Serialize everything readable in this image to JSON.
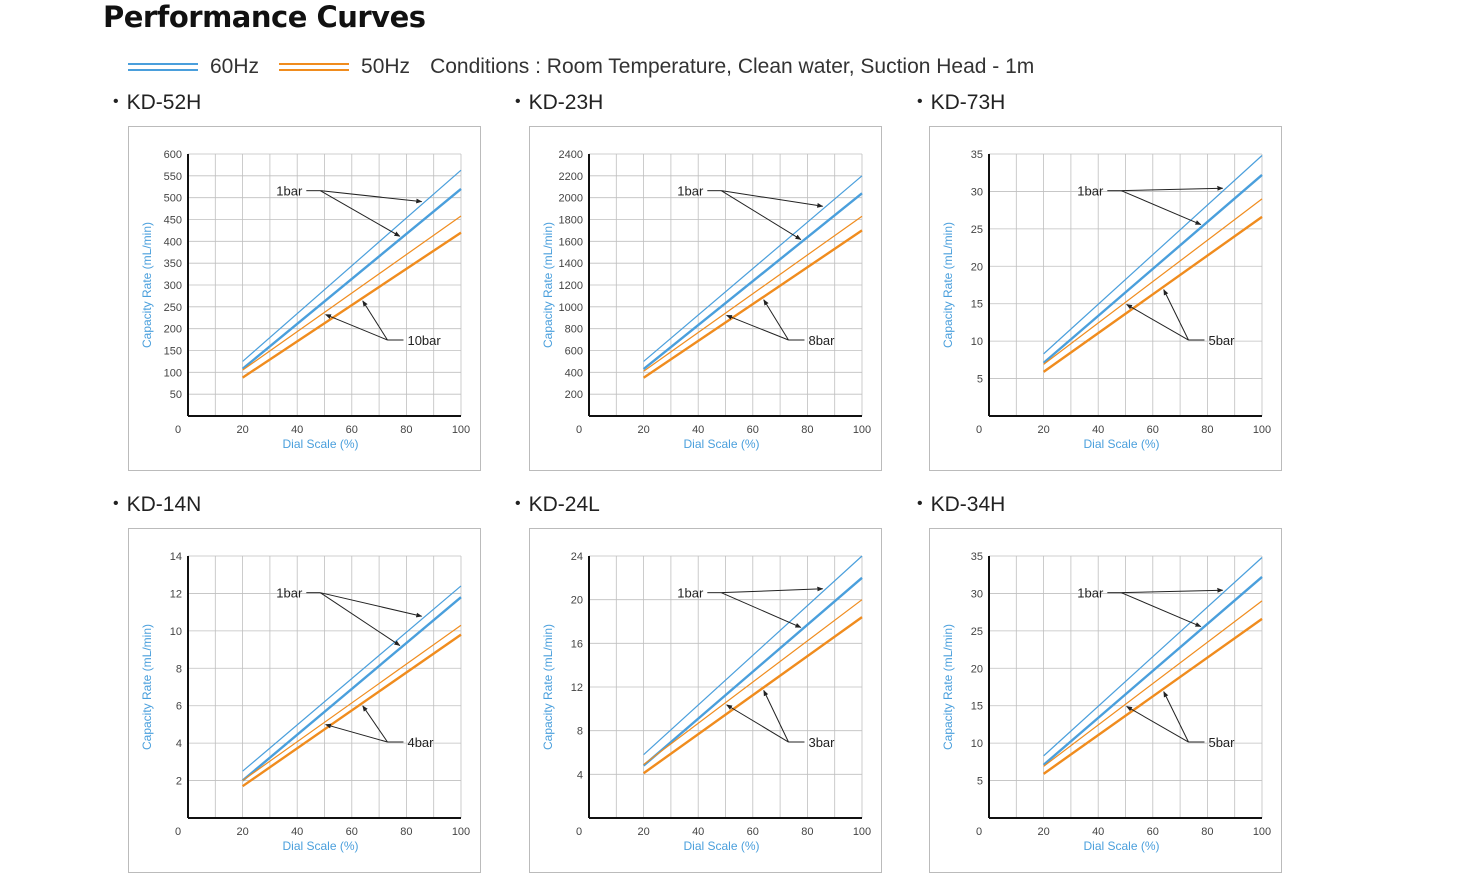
{
  "page": {
    "title": "Performance Curves"
  },
  "legend": {
    "items": [
      {
        "label": "60Hz",
        "color": "#4a9fdc"
      },
      {
        "label": "50Hz",
        "color": "#f08c1e"
      }
    ],
    "conditions": "Conditions : Room Temperature, Clean water, Suction Head - 1m"
  },
  "colors": {
    "hz60": "#4a9fdc",
    "hz50": "#f08c1e",
    "axis_label": "#4a9fdc",
    "grid": "#bfbfbf"
  },
  "chart_data": [
    {
      "type": "line",
      "title": "KD-52H",
      "xlabel": "Dial Scale (%)",
      "ylabel": "Capacity Rate (mL/min)",
      "xlim": [
        0,
        100
      ],
      "ylim": [
        0,
        600
      ],
      "xticks": [
        20,
        40,
        60,
        80,
        100
      ],
      "yticks": [
        50,
        100,
        150,
        200,
        250,
        300,
        350,
        400,
        450,
        500,
        550,
        600
      ],
      "series": [
        {
          "name": "60Hz 1bar",
          "x": [
            20,
            100
          ],
          "y": [
            125,
            563
          ]
        },
        {
          "name": "60Hz 10bar",
          "x": [
            20,
            100
          ],
          "y": [
            108,
            520
          ]
        },
        {
          "name": "50Hz 1bar",
          "x": [
            20,
            100
          ],
          "y": [
            105,
            458
          ]
        },
        {
          "name": "50Hz 10bar",
          "x": [
            20,
            100
          ],
          "y": [
            88,
            420
          ]
        }
      ],
      "annotations": [
        "1bar",
        "10bar"
      ]
    },
    {
      "type": "line",
      "title": "KD-23H",
      "xlabel": "Dial Scale (%)",
      "ylabel": "Capacity Rate (mL/min)",
      "xlim": [
        0,
        100
      ],
      "ylim": [
        0,
        2400
      ],
      "xticks": [
        20,
        40,
        60,
        80,
        100
      ],
      "yticks": [
        200,
        400,
        600,
        800,
        1000,
        1200,
        1400,
        1600,
        1800,
        2000,
        2200,
        2400
      ],
      "series": [
        {
          "name": "60Hz 1bar",
          "x": [
            20,
            100
          ],
          "y": [
            500,
            2200
          ]
        },
        {
          "name": "60Hz 8bar",
          "x": [
            20,
            100
          ],
          "y": [
            430,
            2040
          ]
        },
        {
          "name": "50Hz 1bar",
          "x": [
            20,
            100
          ],
          "y": [
            410,
            1830
          ]
        },
        {
          "name": "50Hz 8bar",
          "x": [
            20,
            100
          ],
          "y": [
            350,
            1700
          ]
        }
      ],
      "annotations": [
        "1bar",
        "8bar"
      ]
    },
    {
      "type": "line",
      "title": "KD-73H",
      "xlabel": "Dial Scale (%)",
      "ylabel": "Capacity Rate (mL/min)",
      "xlim": [
        0,
        100
      ],
      "ylim": [
        0,
        35
      ],
      "xticks": [
        20,
        40,
        60,
        80,
        100
      ],
      "yticks": [
        5,
        10,
        15,
        20,
        25,
        30,
        35
      ],
      "series": [
        {
          "name": "60Hz 1bar",
          "x": [
            20,
            100
          ],
          "y": [
            8.3,
            34.8
          ]
        },
        {
          "name": "60Hz 5bar",
          "x": [
            20,
            100
          ],
          "y": [
            7.1,
            32.2
          ]
        },
        {
          "name": "50Hz 1bar",
          "x": [
            20,
            100
          ],
          "y": [
            6.9,
            29.0
          ]
        },
        {
          "name": "50Hz 5bar",
          "x": [
            20,
            100
          ],
          "y": [
            5.9,
            26.6
          ]
        }
      ],
      "annotations": [
        "1bar",
        "5bar"
      ]
    },
    {
      "type": "line",
      "title": "KD-14N",
      "xlabel": "Dial Scale (%)",
      "ylabel": "Capacity Rate (mL/min)",
      "xlim": [
        0,
        100
      ],
      "ylim": [
        0,
        14
      ],
      "xticks": [
        20,
        40,
        60,
        80,
        100
      ],
      "yticks": [
        2,
        4,
        6,
        8,
        10,
        12,
        14
      ],
      "series": [
        {
          "name": "60Hz 1bar",
          "x": [
            20,
            100
          ],
          "y": [
            2.5,
            12.4
          ]
        },
        {
          "name": "60Hz 4bar",
          "x": [
            20,
            100
          ],
          "y": [
            2.0,
            11.8
          ]
        },
        {
          "name": "50Hz 1bar",
          "x": [
            20,
            100
          ],
          "y": [
            2.0,
            10.3
          ]
        },
        {
          "name": "50Hz 4bar",
          "x": [
            20,
            100
          ],
          "y": [
            1.7,
            9.8
          ]
        }
      ],
      "annotations": [
        "1bar",
        "4bar"
      ]
    },
    {
      "type": "line",
      "title": "KD-24L",
      "xlabel": "Dial Scale (%)",
      "ylabel": "Capacity Rate (mL/min)",
      "xlim": [
        0,
        100
      ],
      "ylim": [
        0,
        24
      ],
      "xticks": [
        20,
        40,
        60,
        80,
        100
      ],
      "yticks": [
        4,
        8,
        12,
        16,
        20,
        24
      ],
      "series": [
        {
          "name": "60Hz 1bar",
          "x": [
            20,
            100
          ],
          "y": [
            5.8,
            24.0
          ]
        },
        {
          "name": "60Hz 3bar",
          "x": [
            20,
            100
          ],
          "y": [
            4.8,
            22.0
          ]
        },
        {
          "name": "50Hz 1bar",
          "x": [
            20,
            100
          ],
          "y": [
            4.9,
            20.0
          ]
        },
        {
          "name": "50Hz 3bar",
          "x": [
            20,
            100
          ],
          "y": [
            4.1,
            18.4
          ]
        }
      ],
      "annotations": [
        "1bar",
        "3bar"
      ]
    },
    {
      "type": "line",
      "title": "KD-34H",
      "xlabel": "Dial Scale (%)",
      "ylabel": "Capacity Rate (mL/min)",
      "xlim": [
        0,
        100
      ],
      "ylim": [
        0,
        35
      ],
      "xticks": [
        20,
        40,
        60,
        80,
        100
      ],
      "yticks": [
        5,
        10,
        15,
        20,
        25,
        30,
        35
      ],
      "series": [
        {
          "name": "60Hz 1bar",
          "x": [
            20,
            100
          ],
          "y": [
            8.3,
            34.8
          ]
        },
        {
          "name": "60Hz 5bar",
          "x": [
            20,
            100
          ],
          "y": [
            7.1,
            32.2
          ]
        },
        {
          "name": "50Hz 1bar",
          "x": [
            20,
            100
          ],
          "y": [
            6.9,
            29.0
          ]
        },
        {
          "name": "50Hz 5bar",
          "x": [
            20,
            100
          ],
          "y": [
            5.9,
            26.6
          ]
        }
      ],
      "annotations": [
        "1bar",
        "5bar"
      ]
    }
  ]
}
